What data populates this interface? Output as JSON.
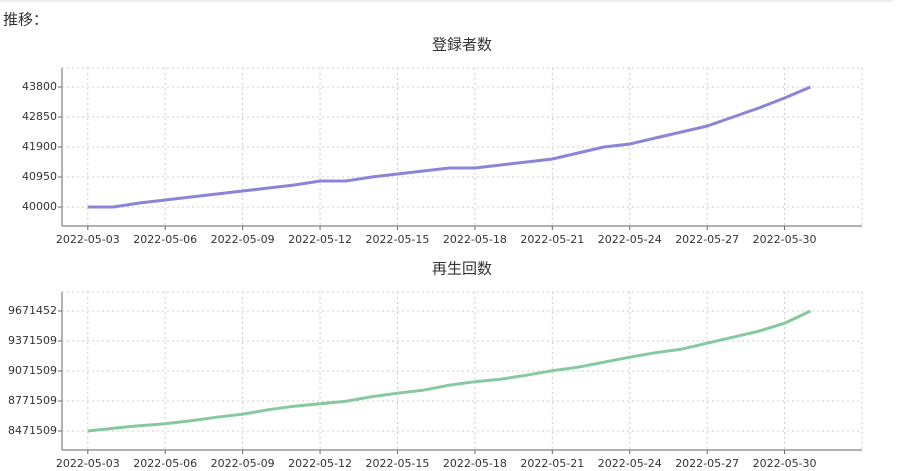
{
  "header": {
    "title": "推移："
  },
  "chart_data": [
    {
      "type": "line",
      "title": "登録者数",
      "x": [
        "2022-05-03",
        "2022-05-04",
        "2022-05-05",
        "2022-05-06",
        "2022-05-07",
        "2022-05-08",
        "2022-05-09",
        "2022-05-10",
        "2022-05-11",
        "2022-05-12",
        "2022-05-13",
        "2022-05-14",
        "2022-05-15",
        "2022-05-16",
        "2022-05-17",
        "2022-05-18",
        "2022-05-19",
        "2022-05-20",
        "2022-05-21",
        "2022-05-22",
        "2022-05-23",
        "2022-05-24",
        "2022-05-25",
        "2022-05-26",
        "2022-05-27",
        "2022-05-28",
        "2022-05-29",
        "2022-05-30",
        "2022-05-31"
      ],
      "series": [
        {
          "color": "#8b84d7",
          "values": [
            40000,
            40000,
            40127,
            40222,
            40317,
            40412,
            40507,
            40602,
            40697,
            40823,
            40823,
            40950,
            41045,
            41140,
            41235,
            41235,
            41330,
            41425,
            41520,
            41710,
            41900,
            41995,
            42185,
            42375,
            42565,
            42850,
            43135,
            43450,
            43800
          ]
        }
      ],
      "xlim": [
        "2022-05-02",
        "2022-06-02"
      ],
      "xticks": [
        "2022-05-03",
        "2022-05-06",
        "2022-05-09",
        "2022-05-12",
        "2022-05-15",
        "2022-05-18",
        "2022-05-21",
        "2022-05-24",
        "2022-05-27",
        "2022-05-30"
      ],
      "ylim": [
        39400,
        44400
      ],
      "yticks": [
        40000,
        40950,
        41900,
        42850,
        43800
      ],
      "grid": true
    },
    {
      "type": "line",
      "title": "再生回数",
      "x": [
        "2022-05-03",
        "2022-05-04",
        "2022-05-05",
        "2022-05-06",
        "2022-05-07",
        "2022-05-08",
        "2022-05-09",
        "2022-05-10",
        "2022-05-11",
        "2022-05-12",
        "2022-05-13",
        "2022-05-14",
        "2022-05-15",
        "2022-05-16",
        "2022-05-17",
        "2022-05-18",
        "2022-05-19",
        "2022-05-20",
        "2022-05-21",
        "2022-05-22",
        "2022-05-23",
        "2022-05-24",
        "2022-05-25",
        "2022-05-26",
        "2022-05-27",
        "2022-05-28",
        "2022-05-29",
        "2022-05-30",
        "2022-05-31"
      ],
      "series": [
        {
          "color": "#86c9a0",
          "values": [
            8471509,
            8500000,
            8525000,
            8545000,
            8575000,
            8610000,
            8640000,
            8685000,
            8720000,
            8745000,
            8770000,
            8815000,
            8850000,
            8880000,
            8930000,
            8965000,
            8990000,
            9030000,
            9075000,
            9110000,
            9160000,
            9210000,
            9255000,
            9290000,
            9350000,
            9410000,
            9470000,
            9550000,
            9671452
          ]
        }
      ],
      "xlim": [
        "2022-05-02",
        "2022-06-02"
      ],
      "xticks": [
        "2022-05-03",
        "2022-05-06",
        "2022-05-09",
        "2022-05-12",
        "2022-05-15",
        "2022-05-18",
        "2022-05-21",
        "2022-05-24",
        "2022-05-27",
        "2022-05-30"
      ],
      "ylim": [
        8281509,
        9861509
      ],
      "yticks": [
        8471509,
        8771509,
        9071509,
        9371509,
        9671452
      ],
      "grid": true
    }
  ]
}
